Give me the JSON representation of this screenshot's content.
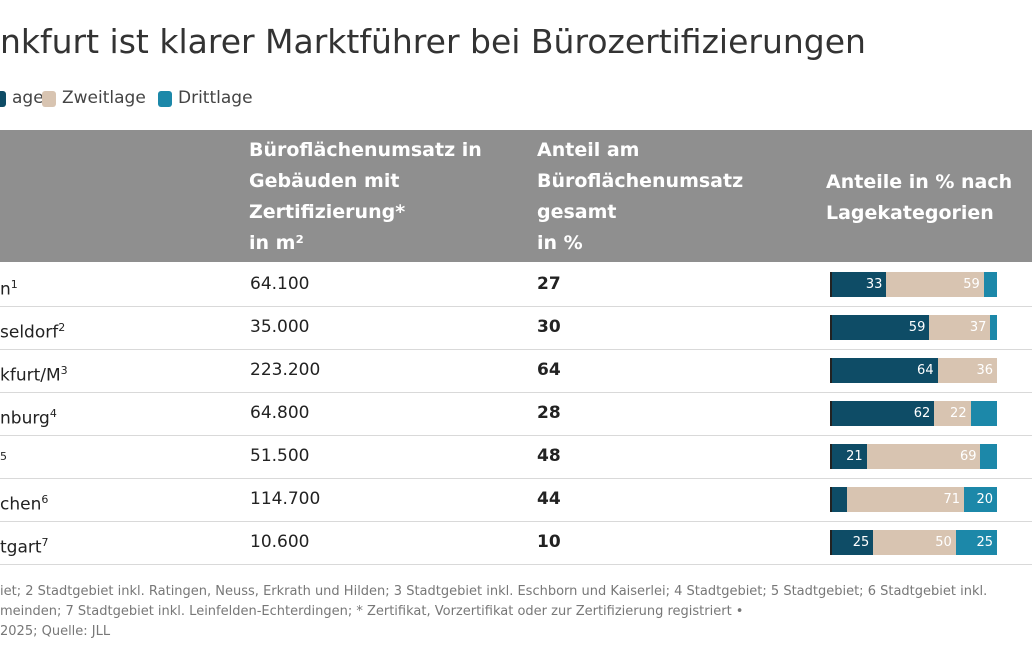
{
  "header": {
    "title": "nkfurt ist klarer Marktführer bei Bürozertifizierungen"
  },
  "legend": [
    {
      "label": "age",
      "color": "#0e4c66"
    },
    {
      "label": "Zweitlage",
      "color": "#d8c4b1"
    },
    {
      "label": "Drittlage",
      "color": "#1c88a9"
    }
  ],
  "table": {
    "columns": [
      [
        "Büroflächenumsatz in",
        "Gebäuden mit",
        "Zertifizierung*",
        "in m²"
      ],
      [
        "Anteil am",
        "Büroflächenumsatz",
        "gesamt",
        "in %"
      ],
      [
        "Anteile in % nach",
        "Lagekategorien"
      ]
    ],
    "rows": [
      {
        "name": "n",
        "note": "1",
        "area": "64.100",
        "share": "27",
        "parts": [
          33,
          59,
          8
        ]
      },
      {
        "name": "seldorf",
        "note": "2",
        "area": "35.000",
        "share": "30",
        "parts": [
          59,
          37,
          4
        ]
      },
      {
        "name": "kfurt/M",
        "note": "3",
        "area": "223.200",
        "share": "64",
        "parts": [
          64,
          36,
          0
        ]
      },
      {
        "name": "nburg",
        "note": "4",
        "area": "64.800",
        "share": "28",
        "parts": [
          62,
          22,
          16
        ]
      },
      {
        "note": "5",
        "area": "51.500",
        "share": "48",
        "parts": [
          21,
          69,
          10
        ]
      },
      {
        "name": "chen",
        "note": "6",
        "area": "114.700",
        "share": "44",
        "parts": [
          9,
          71,
          20
        ]
      },
      {
        "name": "tgart",
        "note": "7",
        "area": "10.600",
        "share": "10",
        "parts": [
          25,
          50,
          25
        ]
      }
    ]
  },
  "footnote": [
    "iet; 2 Stadtgebiet inkl. Ratingen, Neuss, Erkrath und Hilden; 3 Stadtgebiet inkl. Eschborn und Kaiserlei; 4 Stadtgebiet; 5 Stadtgebiet; 6 Stadtgebiet inkl.",
    "meinden; 7 Stadtgebiet inkl. Leinfelden-Echterdingen; * Zertifikat, Vorzertifikat oder zur Zertifizierung registriert •",
    "2025; Quelle: JLL"
  ]
}
